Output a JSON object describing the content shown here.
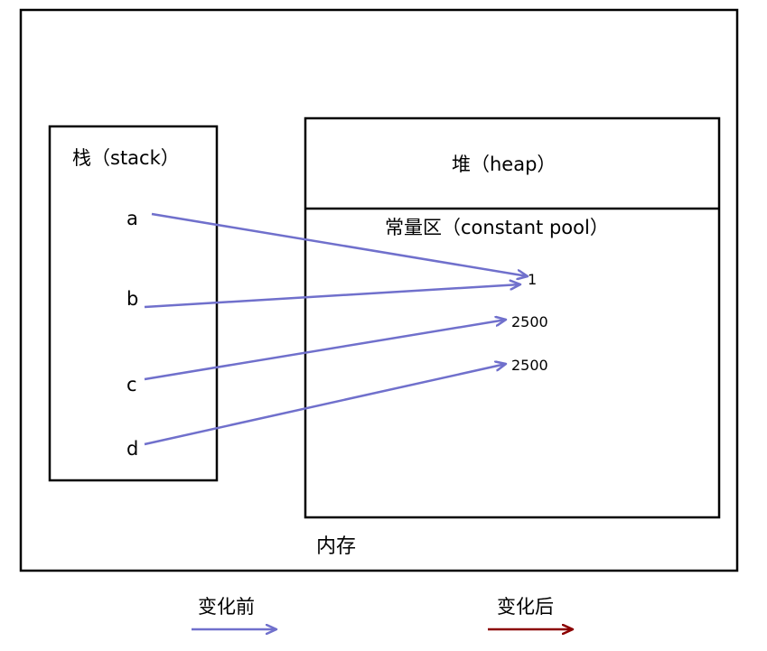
{
  "memory": {
    "label": "内存"
  },
  "stack": {
    "title": "栈（stack）",
    "vars": [
      {
        "name": "a",
        "target": 0
      },
      {
        "name": "b",
        "target": 0
      },
      {
        "name": "c",
        "target": 1
      },
      {
        "name": "d",
        "target": 2
      }
    ]
  },
  "heap": {
    "title": "堆（heap）"
  },
  "pool": {
    "title": "常量区（constant pool）",
    "values": [
      "1",
      "2500",
      "2500"
    ]
  },
  "legend": {
    "before_label": "变化前",
    "after_label": "变化后",
    "before_color": "#7070cc",
    "after_color": "#8b0000"
  }
}
